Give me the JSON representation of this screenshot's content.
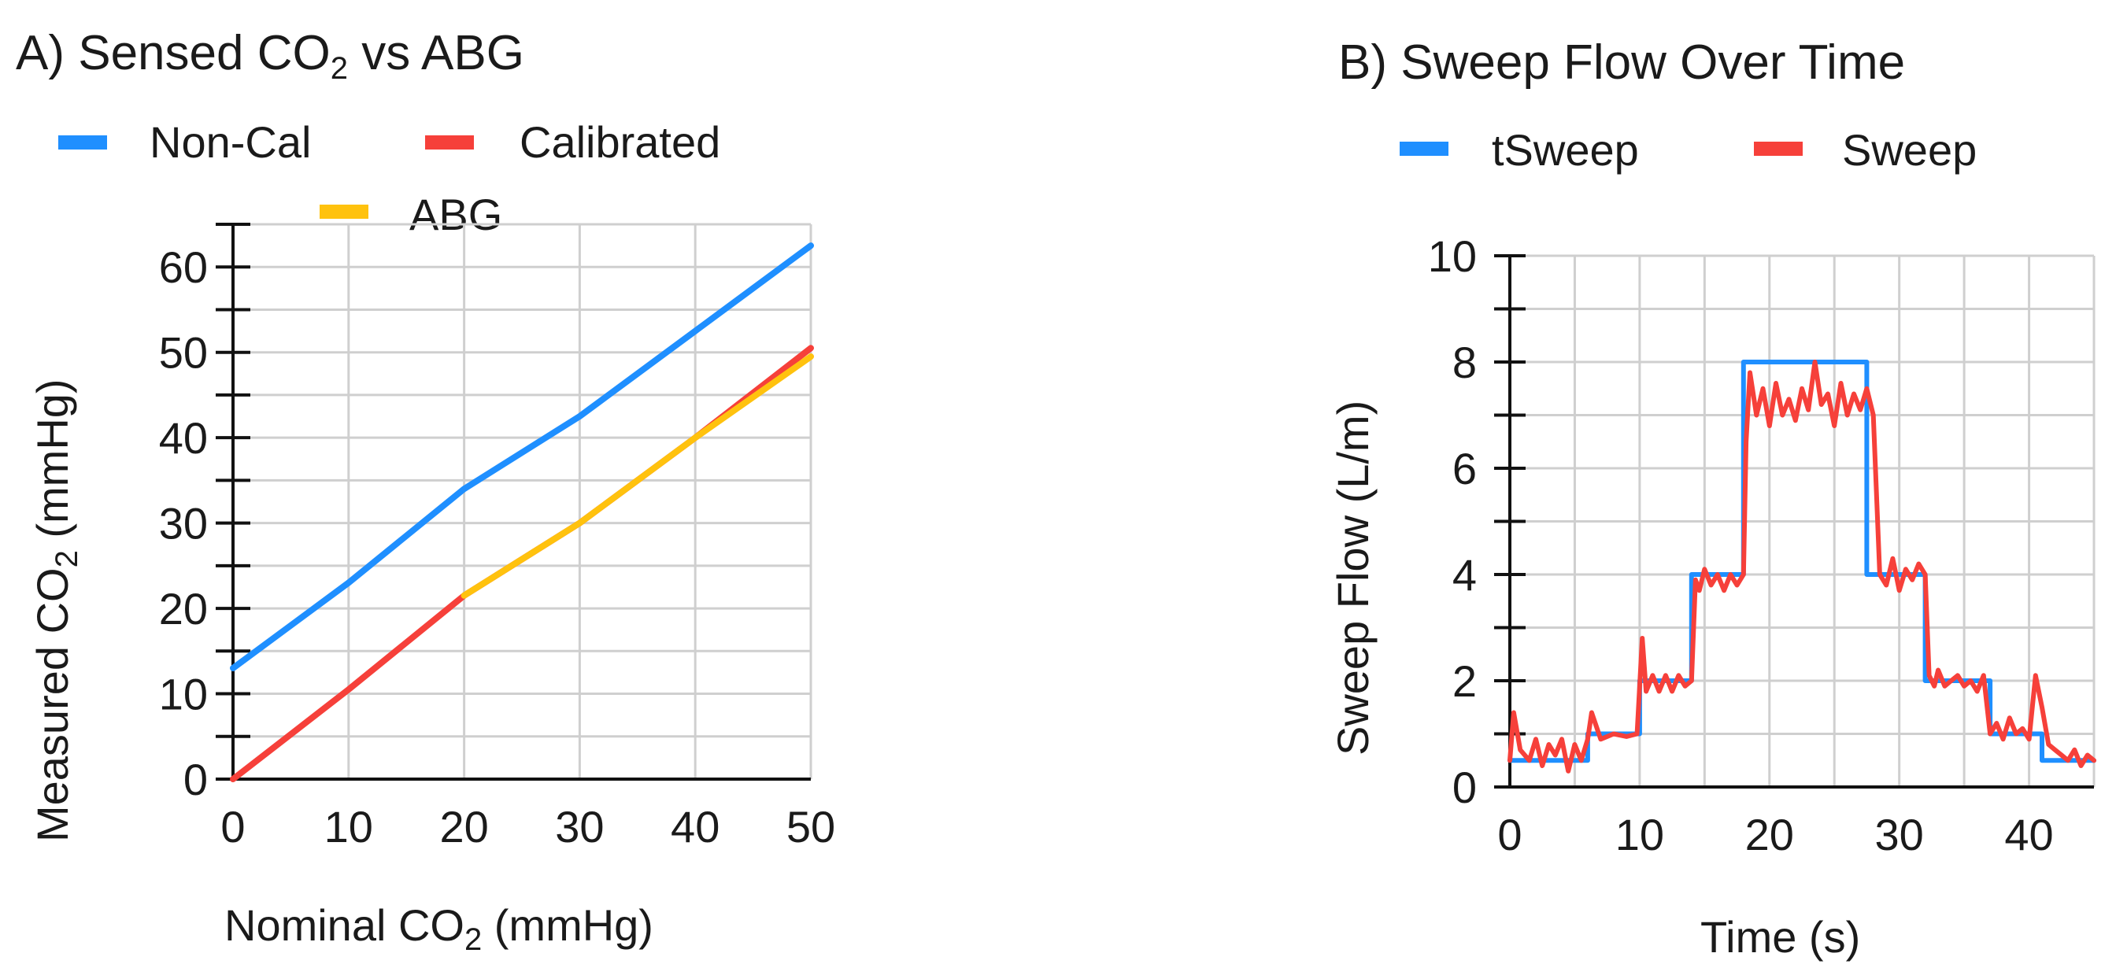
{
  "chart_data": [
    {
      "type": "line",
      "title": {
        "prefix": "A) Sensed CO",
        "sub": "2",
        "suffix": "  vs ABG"
      },
      "xlabel": {
        "prefix": "Nominal CO",
        "sub": "2",
        "suffix": "  (mmHg)"
      },
      "ylabel": {
        "prefix": "Measured CO",
        "sub": "2",
        "suffix": " (mmHg)"
      },
      "xlim": [
        0,
        50
      ],
      "ylim": [
        0,
        65
      ],
      "xticks": [
        "0",
        "10",
        "20",
        "30",
        "40",
        "50"
      ],
      "yticks": [
        "0",
        "10",
        "20",
        "30",
        "40",
        "50",
        "60"
      ],
      "grid": true,
      "legend": "top",
      "series": [
        {
          "name": "Non-Cal",
          "color": "#1f8fff",
          "x": [
            0,
            10,
            20,
            30,
            40,
            50
          ],
          "y": [
            13,
            23,
            34,
            42.5,
            52.5,
            62.5
          ]
        },
        {
          "name": "Calibrated",
          "color": "#f6403a",
          "x": [
            0,
            10,
            20,
            30,
            40,
            50
          ],
          "y": [
            0,
            10.5,
            21.5,
            30,
            40,
            50.5
          ]
        },
        {
          "name": "ABG",
          "color": "#ffc20e",
          "x": [
            20,
            30,
            40,
            50
          ],
          "y": [
            21.5,
            30,
            40,
            49.5
          ]
        }
      ]
    },
    {
      "type": "line",
      "title": "B) Sweep Flow Over Time",
      "xlabel": "Time (s)",
      "ylabel": "Sweep Flow (L/m)",
      "xlim": [
        0,
        45
      ],
      "ylim": [
        0,
        10
      ],
      "xticks": [
        "0",
        "10",
        "20",
        "30",
        "40"
      ],
      "yticks": [
        "0",
        "2",
        "4",
        "6",
        "8",
        "10"
      ],
      "grid": true,
      "legend": "top",
      "series": [
        {
          "name": "tSweep",
          "color": "#1f8fff",
          "x": [
            0,
            6,
            6,
            10,
            10,
            14,
            14,
            18,
            18,
            27.5,
            27.5,
            32,
            32,
            37,
            37,
            41,
            41,
            45
          ],
          "y": [
            0.5,
            0.5,
            1,
            1,
            2,
            2,
            4,
            4,
            8,
            8,
            4,
            4,
            2,
            2,
            1,
            1,
            0.5,
            0.5
          ]
        },
        {
          "name": "Sweep",
          "color": "#f6403a",
          "x": [
            0,
            0.3,
            0.8,
            1.5,
            2,
            2.5,
            3,
            3.5,
            4,
            4.5,
            5,
            5.5,
            6,
            6.3,
            7,
            8,
            9,
            9.8,
            10.2,
            10.5,
            11,
            11.5,
            12,
            12.5,
            13,
            13.5,
            14,
            14.3,
            14.6,
            15,
            15.5,
            16,
            16.5,
            17,
            17.5,
            18,
            18.2,
            18.5,
            19,
            19.5,
            20,
            20.5,
            21,
            21.5,
            22,
            22.5,
            23,
            23.5,
            24,
            24.5,
            25,
            25.5,
            26,
            26.5,
            27,
            27.5,
            28,
            28.5,
            29,
            29.5,
            30,
            30.5,
            31,
            31.5,
            32,
            32.3,
            32.7,
            33,
            33.5,
            34,
            34.5,
            35,
            35.5,
            36,
            36.5,
            37,
            37.5,
            38,
            38.5,
            39,
            39.5,
            40,
            40.5,
            41,
            41.5,
            42,
            42.5,
            43,
            43.5,
            44,
            44.5,
            45
          ],
          "y": [
            0.5,
            1.4,
            0.7,
            0.5,
            0.9,
            0.4,
            0.8,
            0.6,
            0.9,
            0.3,
            0.8,
            0.5,
            0.9,
            1.4,
            0.9,
            1.0,
            0.95,
            1.0,
            2.8,
            1.8,
            2.1,
            1.8,
            2.1,
            1.8,
            2.1,
            1.9,
            2.0,
            3.9,
            3.7,
            4.1,
            3.8,
            4.0,
            3.7,
            4.0,
            3.8,
            4.0,
            6.5,
            7.8,
            7.0,
            7.5,
            6.8,
            7.6,
            7.0,
            7.3,
            6.9,
            7.5,
            7.1,
            8.0,
            7.2,
            7.4,
            6.8,
            7.6,
            7.0,
            7.4,
            7.1,
            7.5,
            7.0,
            4.0,
            3.8,
            4.3,
            3.7,
            4.1,
            3.9,
            4.2,
            4.0,
            2.1,
            1.9,
            2.2,
            1.9,
            2.0,
            2.1,
            1.9,
            2.0,
            1.8,
            2.1,
            1.0,
            1.2,
            0.9,
            1.3,
            1.0,
            1.1,
            0.9,
            2.1,
            1.5,
            0.8,
            0.7,
            0.6,
            0.5,
            0.7,
            0.4,
            0.6,
            0.5
          ]
        }
      ]
    }
  ]
}
